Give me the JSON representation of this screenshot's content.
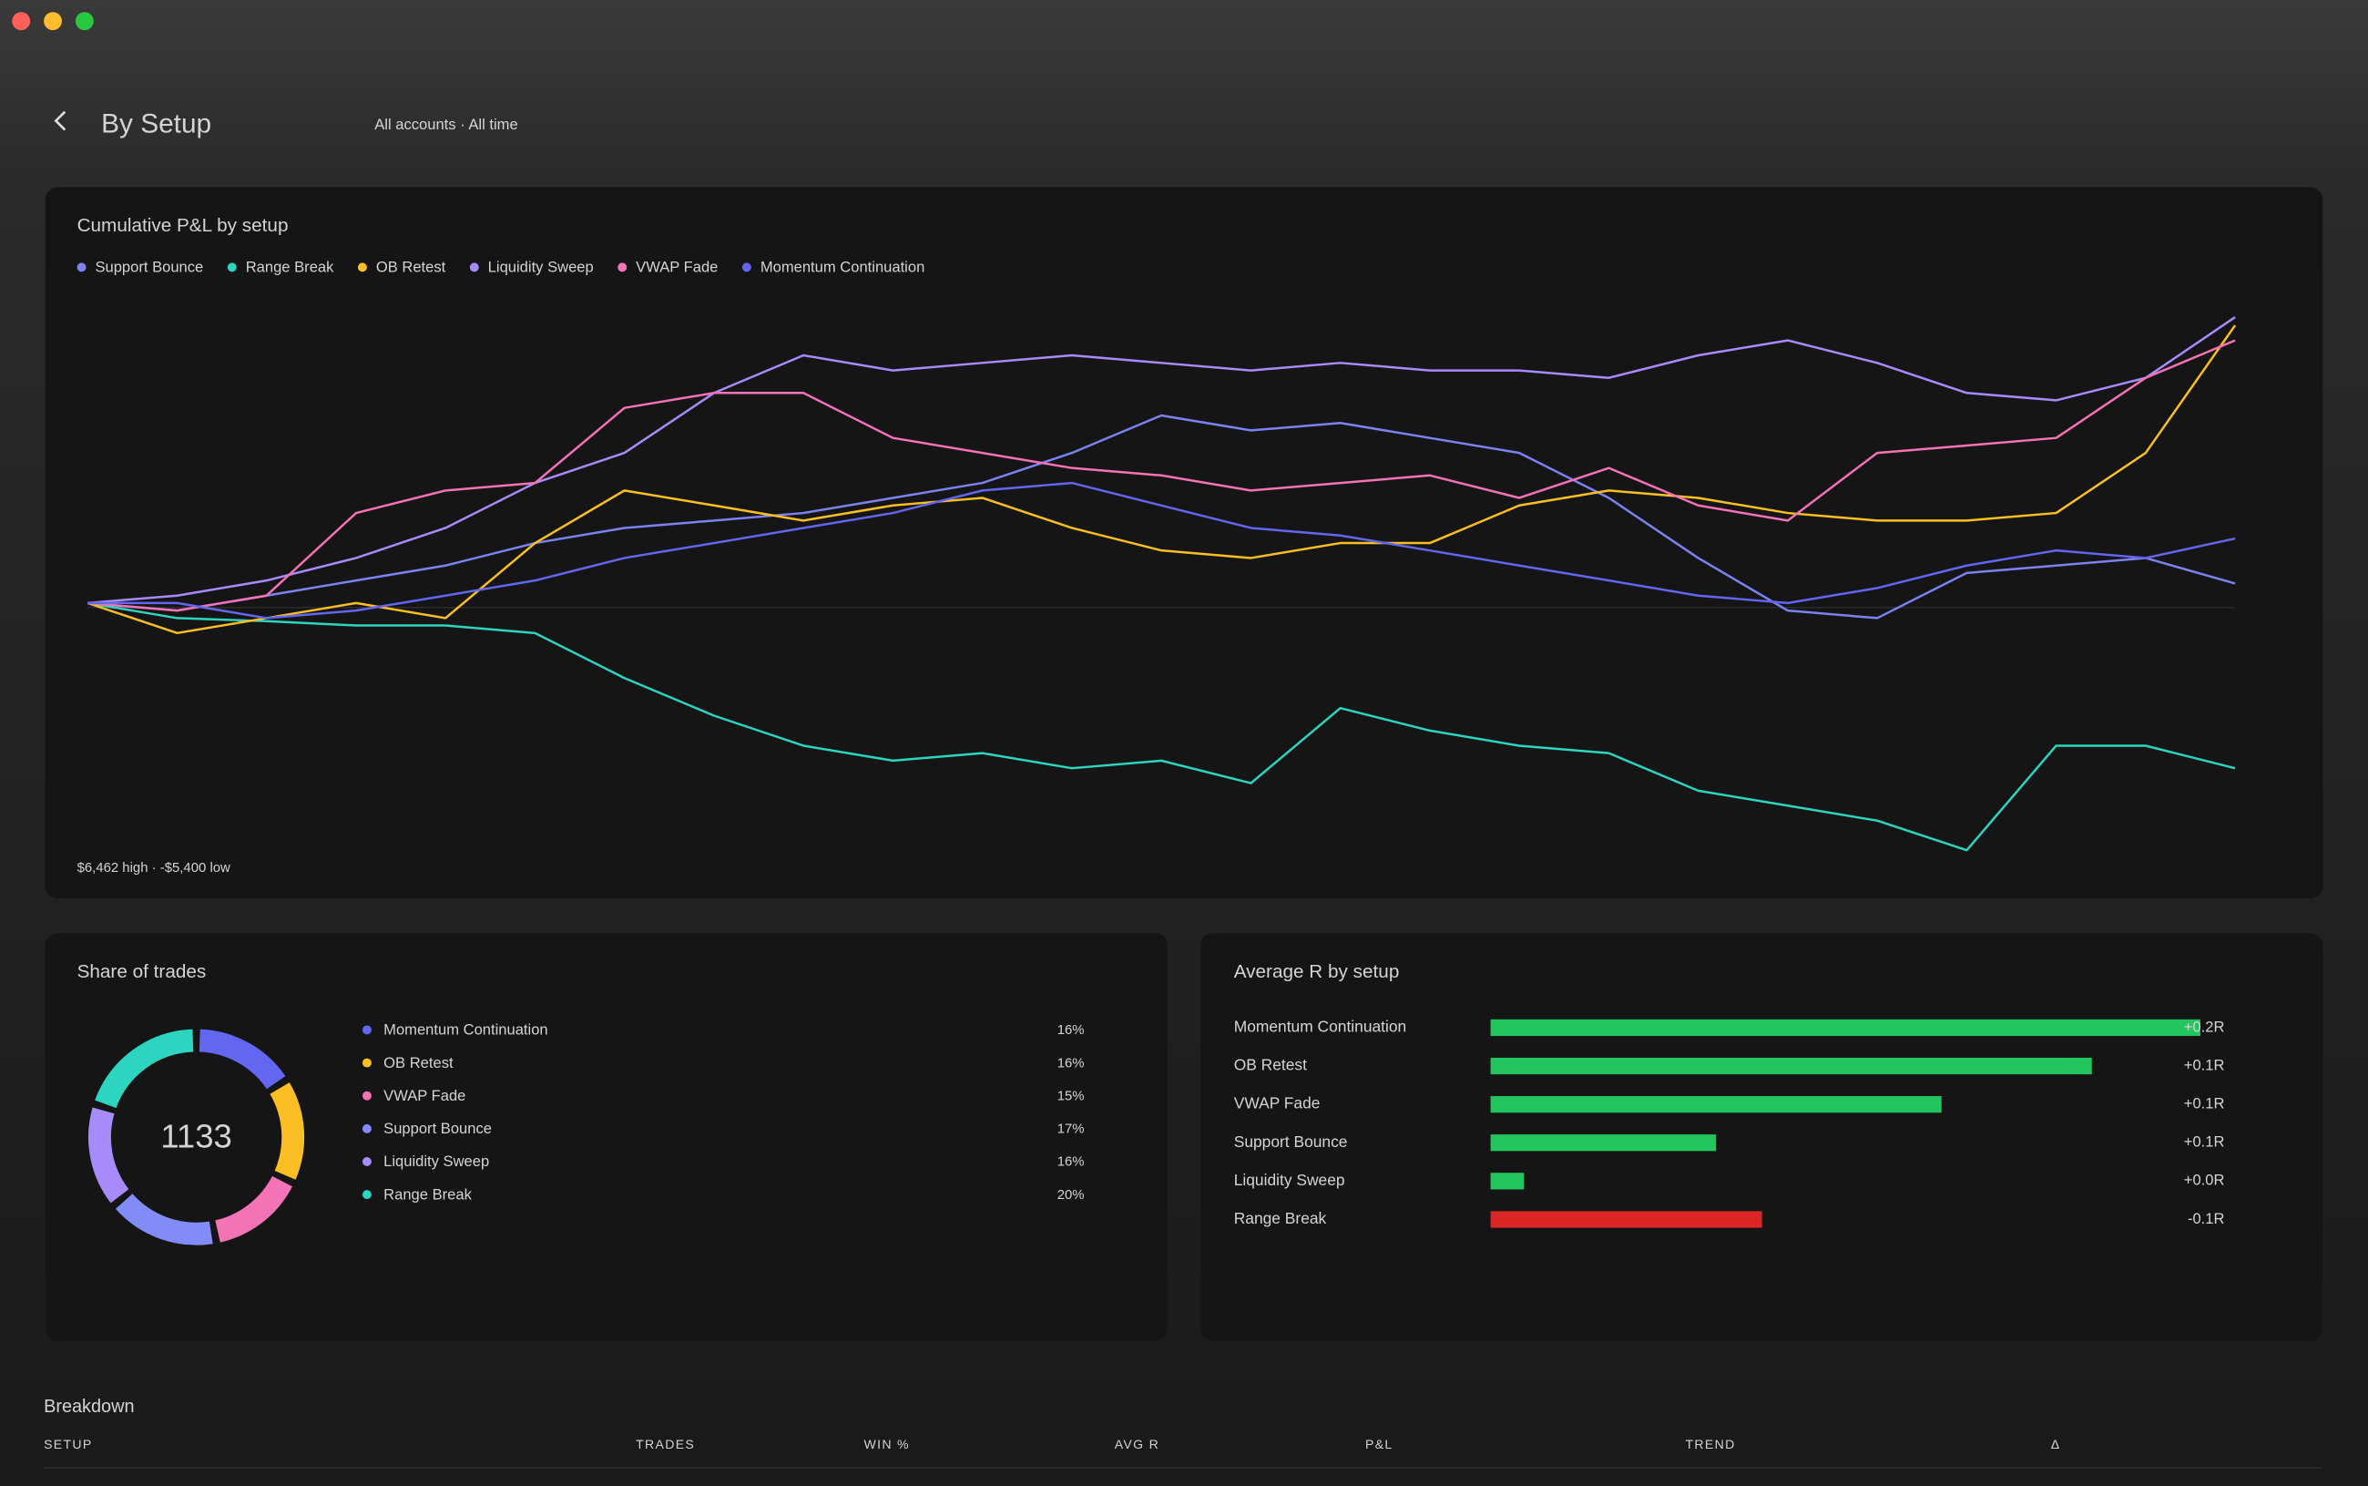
{
  "header": {
    "title": "By Setup",
    "subtitle": "All accounts · All time"
  },
  "chart_data": [
    {
      "type": "line",
      "title": "Cumulative P&L by setup",
      "note": "$6,462 high · -$5,400 low",
      "series": [
        {
          "name": "Support Bounce",
          "color": "#7c83f0",
          "values": [
            100,
            -67,
            267,
            601,
            935,
            1436,
            1770,
            1937,
            2104,
            2438,
            2772,
            3440,
            4275,
            3941,
            4108,
            3774,
            3440,
            2438,
            1102,
            -67,
            -234,
            768,
            935,
            1102,
            534
          ]
        },
        {
          "name": "Range Break",
          "color": "#2dd4bf",
          "values": [
            100,
            -234,
            -301,
            -401,
            -401,
            -568,
            -1570,
            -2405,
            -3073,
            -3407,
            -3240,
            -3574,
            -3407,
            -3908,
            -2238,
            -2739,
            -3073,
            -3240,
            -4075,
            -4409,
            -4743,
            -5400,
            -3073,
            -3073,
            -3574
          ]
        },
        {
          "name": "OB Retest",
          "color": "#fbbf24",
          "values": [
            100,
            -568,
            -234,
            100,
            -234,
            1436,
            2605,
            2271,
            1937,
            2271,
            2438,
            1770,
            1269,
            1102,
            1436,
            1436,
            2271,
            2605,
            2438,
            2104,
            1937,
            1937,
            2104,
            3440,
            6279
          ]
        },
        {
          "name": "Liquidity Sweep",
          "color": "#a78bfa",
          "values": [
            100,
            267,
            601,
            1102,
            1770,
            2772,
            3440,
            4776,
            5611,
            5277,
            5444,
            5611,
            5444,
            5277,
            5444,
            5277,
            5277,
            5110,
            5611,
            5945,
            5444,
            4776,
            4609,
            5110,
            6462
          ]
        },
        {
          "name": "VWAP Fade",
          "color": "#f472b6",
          "values": [
            100,
            -67,
            267,
            2104,
            2605,
            2772,
            4442,
            4776,
            4776,
            3774,
            3440,
            3106,
            2939,
            2605,
            2772,
            2939,
            2438,
            3106,
            2271,
            1937,
            3440,
            3607,
            3774,
            5110,
            5945
          ]
        },
        {
          "name": "Momentum Continuation",
          "color": "#6366f1",
          "values": [
            100,
            100,
            -234,
            -67,
            267,
            601,
            1102,
            1436,
            1770,
            2104,
            2605,
            2772,
            2271,
            1770,
            1603,
            1269,
            935,
            601,
            267,
            100,
            434,
            935,
            1269,
            1102,
            1536
          ]
        }
      ]
    },
    {
      "type": "donut",
      "title": "Share of trades",
      "total": 1133,
      "categories": [
        "Momentum Continuation",
        "OB Retest",
        "VWAP Fade",
        "Support Bounce",
        "Liquidity Sweep",
        "Range Break"
      ],
      "values": [
        16,
        16,
        15,
        17,
        16,
        20
      ],
      "value_labels": [
        "16%",
        "16%",
        "15%",
        "17%",
        "16%",
        "20%"
      ],
      "colors": [
        "#6366f1",
        "#fbbf24",
        "#f472b6",
        "#818cf8",
        "#a78bfa",
        "#2dd4bf"
      ]
    },
    {
      "type": "hbar",
      "title": "Average R by setup",
      "categories": [
        "Momentum Continuation",
        "OB Retest",
        "VWAP Fade",
        "Support Bounce",
        "Liquidity Sweep",
        "Range Break"
      ],
      "values": [
        0.17,
        0.144,
        0.108,
        0.054,
        0.008,
        -0.065
      ],
      "value_labels": [
        "+0.2R",
        "+0.1R",
        "+0.1R",
        "+0.1R",
        "+0.0R",
        "-0.1R"
      ],
      "positive_color": "#22c55e",
      "negative_color": "#dc2626"
    }
  ],
  "breakdown": {
    "title": "Breakdown",
    "columns": [
      "SETUP",
      "TRADES",
      "WIN %",
      "AVG R",
      "P&L",
      "TREND",
      "Δ"
    ]
  }
}
